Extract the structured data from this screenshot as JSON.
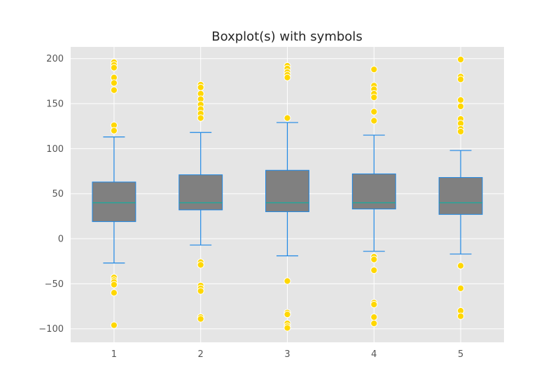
{
  "chart_data": {
    "type": "box",
    "title": "Boxplot(s) with symbols",
    "xlabel": "",
    "ylabel": "",
    "ylim": [
      -115,
      213
    ],
    "yticks": [
      -100,
      -50,
      0,
      50,
      100,
      150,
      200
    ],
    "ytick_labels": [
      "−100",
      "−50",
      "0",
      "50",
      "100",
      "150",
      "200"
    ],
    "grid": true,
    "colors": {
      "plot_background": "#e5e5e5",
      "grid": "#ffffff",
      "box_fill": "#808080",
      "whisker": "#1e88e5",
      "median": "#26a69a",
      "flier_fill": "#ffd700",
      "flier_edge": "#ffffff"
    },
    "boxes": [
      {
        "label": "1",
        "q1": 19,
        "median": 40,
        "q3": 63,
        "whisker_low": -27,
        "whisker_high": 113,
        "fliers": [
          196,
          193,
          190,
          179,
          173,
          165,
          126,
          120,
          -43,
          -46,
          -48,
          -51,
          -60,
          -96
        ]
      },
      {
        "label": "2",
        "q1": 32,
        "median": 40,
        "q3": 71,
        "whisker_low": -7,
        "whisker_high": 118,
        "fliers": [
          171,
          168,
          161,
          155,
          149,
          144,
          139,
          134,
          -26,
          -29,
          -52,
          -55,
          -58,
          -87,
          -89
        ]
      },
      {
        "label": "3",
        "q1": 30,
        "median": 40,
        "q3": 76,
        "whisker_low": -19,
        "whisker_high": 129,
        "fliers": [
          192,
          189,
          185,
          182,
          179,
          134,
          -47,
          -82,
          -84,
          -94,
          -97,
          -99
        ]
      },
      {
        "label": "4",
        "q1": 33,
        "median": 40,
        "q3": 72,
        "whisker_low": -14,
        "whisker_high": 115,
        "fliers": [
          188,
          170,
          166,
          161,
          157,
          141,
          131,
          -20,
          -23,
          -35,
          -71,
          -73,
          -87,
          -94
        ]
      },
      {
        "label": "5",
        "q1": 27,
        "median": 40,
        "q3": 68,
        "whisker_low": -17,
        "whisker_high": 98,
        "fliers": [
          199,
          180,
          177,
          154,
          147,
          133,
          128,
          122,
          119,
          -30,
          -55,
          -80,
          -86
        ]
      }
    ]
  }
}
